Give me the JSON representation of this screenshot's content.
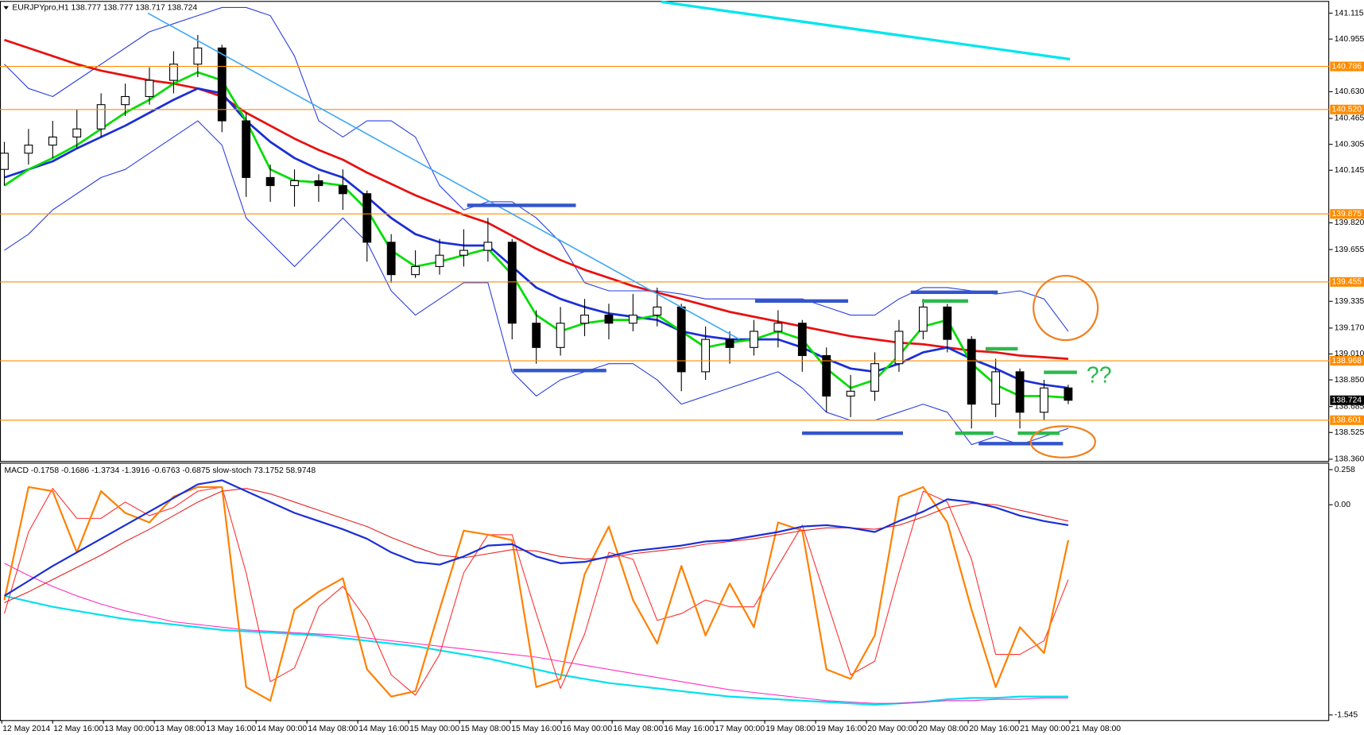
{
  "chart_data": [
    {
      "type": "candlestick",
      "title": "EURJPYpro,H1  138.777 138.777 138.717 138.724",
      "ylim": [
        138.349,
        141.185
      ],
      "yticks": [
        141.115,
        140.955,
        {
          "value": 140.63,
          "label": "140.630"
        },
        140.465,
        140.305,
        140.145,
        {
          "value": 139.82,
          "label": "139.820"
        },
        139.655,
        139.335,
        {
          "value": 139.17,
          "label": "139.170"
        },
        {
          "value": 139.01,
          "label": "139.010"
        },
        {
          "value": 138.85,
          "label": "138.850"
        },
        138.685,
        138.525,
        {
          "value": 138.36,
          "label": "138.360"
        }
      ],
      "levels": [
        140.786,
        {
          "value": 140.52,
          "label": "140.520"
        },
        139.875,
        139.455,
        138.968,
        138.601
      ],
      "level_color": "#ff8c00",
      "last_price": 138.724,
      "annotation": "??",
      "open": [
        140.15,
        140.25,
        140.3,
        140.35,
        140.4,
        140.55,
        140.6,
        140.7,
        140.8,
        140.9,
        140.45,
        140.1,
        140.05,
        140.08,
        140.05,
        140.0,
        139.7,
        139.5,
        139.55,
        139.62,
        139.65,
        139.7,
        139.2,
        139.05,
        139.2,
        139.25,
        139.2,
        139.25,
        139.3,
        138.9,
        139.1,
        139.05,
        139.15,
        139.2,
        139.0,
        138.75,
        138.78,
        138.95,
        139.15,
        139.3,
        139.1,
        138.7,
        138.9,
        138.65,
        138.8
      ],
      "high": [
        140.32,
        140.4,
        140.45,
        140.52,
        140.62,
        140.68,
        140.78,
        140.88,
        140.98,
        140.92,
        140.5,
        140.18,
        140.15,
        140.12,
        140.15,
        140.02,
        139.75,
        139.65,
        139.72,
        139.78,
        139.85,
        139.72,
        139.28,
        139.3,
        139.35,
        139.32,
        139.38,
        139.42,
        139.32,
        139.18,
        139.15,
        139.22,
        139.28,
        139.22,
        139.05,
        138.88,
        139.02,
        139.22,
        139.35,
        139.32,
        139.12,
        138.98,
        138.92,
        138.85,
        138.82
      ],
      "low": [
        140.05,
        140.18,
        140.22,
        140.28,
        140.35,
        140.48,
        140.55,
        140.62,
        140.72,
        140.38,
        139.98,
        139.95,
        139.92,
        139.95,
        139.9,
        139.58,
        139.45,
        139.48,
        139.5,
        139.55,
        139.58,
        139.1,
        138.95,
        139.0,
        139.12,
        139.1,
        139.15,
        139.18,
        138.78,
        138.85,
        138.95,
        139.0,
        139.05,
        138.9,
        138.65,
        138.62,
        138.72,
        138.9,
        139.1,
        139.02,
        138.55,
        138.62,
        138.55,
        138.6,
        138.7
      ],
      "close": [
        140.25,
        140.3,
        140.35,
        140.4,
        140.55,
        140.6,
        140.7,
        140.8,
        140.9,
        140.45,
        140.1,
        140.05,
        140.08,
        140.05,
        140.0,
        139.7,
        139.5,
        139.55,
        139.62,
        139.65,
        139.7,
        139.2,
        139.05,
        139.2,
        139.25,
        139.2,
        139.25,
        139.3,
        138.9,
        139.1,
        139.05,
        139.15,
        139.2,
        139.0,
        138.75,
        138.78,
        138.95,
        139.15,
        139.3,
        139.1,
        138.7,
        138.9,
        138.65,
        138.8,
        138.724
      ],
      "series": [
        {
          "color": "#2b3fe0",
          "width": 1,
          "values": [
            140.8,
            140.65,
            140.6,
            140.7,
            140.8,
            140.9,
            141.0,
            141.05,
            141.1,
            141.15,
            141.15,
            141.1,
            140.85,
            140.45,
            140.35,
            140.45,
            140.45,
            140.35,
            140.05,
            139.9,
            139.95,
            139.95,
            139.85,
            139.7,
            139.45,
            139.4,
            139.4,
            139.4,
            139.38,
            139.35,
            139.35,
            139.35,
            139.35,
            139.35,
            139.3,
            139.25,
            139.25,
            139.35,
            139.42,
            139.42,
            139.4,
            139.38,
            139.4,
            139.35,
            139.15
          ]
        },
        {
          "color": "#2b3fe0",
          "width": 1,
          "values": [
            139.65,
            139.75,
            139.9,
            140.0,
            140.1,
            140.15,
            140.25,
            140.35,
            140.45,
            140.3,
            139.85,
            139.7,
            139.55,
            139.7,
            139.85,
            139.7,
            139.4,
            139.25,
            139.35,
            139.45,
            139.45,
            138.9,
            138.75,
            138.85,
            138.9,
            138.95,
            138.95,
            138.85,
            138.7,
            138.75,
            138.8,
            138.85,
            138.9,
            138.8,
            138.65,
            138.6,
            138.6,
            138.65,
            138.7,
            138.65,
            138.45,
            138.5,
            138.45,
            138.5,
            138.55
          ]
        },
        {
          "color": "#e81010",
          "width": 2.5,
          "values": [
            140.95,
            140.9,
            140.85,
            140.8,
            140.76,
            140.73,
            140.7,
            140.68,
            140.65,
            140.6,
            140.5,
            140.42,
            140.34,
            140.27,
            140.21,
            140.13,
            140.06,
            139.99,
            139.93,
            139.87,
            139.82,
            139.74,
            139.66,
            139.59,
            139.53,
            139.48,
            139.43,
            139.39,
            139.35,
            139.31,
            139.27,
            139.24,
            139.21,
            139.18,
            139.15,
            139.12,
            139.1,
            139.08,
            139.07,
            139.05,
            139.03,
            139.02,
            139.0,
            138.99,
            138.98
          ]
        },
        {
          "color": "#1a2ed6",
          "width": 2.5,
          "values": [
            140.1,
            140.15,
            140.2,
            140.28,
            140.35,
            140.42,
            140.5,
            140.58,
            140.65,
            140.62,
            140.45,
            140.32,
            140.22,
            140.15,
            140.1,
            139.98,
            139.85,
            139.75,
            139.7,
            139.68,
            139.68,
            139.55,
            139.42,
            139.35,
            139.3,
            139.26,
            139.24,
            139.22,
            139.15,
            139.12,
            139.1,
            139.1,
            139.1,
            139.05,
            138.98,
            138.92,
            138.9,
            138.95,
            139.02,
            139.05,
            138.98,
            138.92,
            138.85,
            138.82,
            138.8
          ]
        },
        {
          "color": "#00dd00",
          "width": 2.5,
          "values": [
            140.05,
            140.15,
            140.22,
            140.3,
            140.4,
            140.5,
            140.58,
            140.68,
            140.75,
            140.7,
            140.45,
            140.15,
            140.08,
            140.07,
            140.05,
            139.9,
            139.65,
            139.55,
            139.58,
            139.62,
            139.66,
            139.5,
            139.25,
            139.15,
            139.2,
            139.22,
            139.22,
            139.25,
            139.15,
            139.05,
            139.08,
            139.1,
            139.15,
            139.1,
            138.92,
            138.8,
            138.85,
            139.0,
            139.18,
            139.22,
            138.95,
            138.82,
            138.75,
            138.75,
            138.74
          ]
        }
      ]
    },
    {
      "type": "line",
      "title": "MACD -0.1758 -0.1686 -1.3734 -1.3916 -0.6763 -0.6875 slow-stoch 73.1752 58.9748",
      "ylim": [
        -1.583,
        0.309
      ],
      "yticks": [
        0.258,
        {
          "value": 0,
          "label": "0.00"
        },
        -1.545
      ],
      "x_labels": [
        "12 May 2014",
        "12 May 16:00",
        "13 May 00:00",
        "13 May 08:00",
        "13 May 16:00",
        "14 May 00:00",
        "14 May 08:00",
        "14 May 16:00",
        "15 May 00:00",
        "15 May 08:00",
        "15 May 16:00",
        "16 May 00:00",
        "16 May 08:00",
        "16 May 16:00",
        "17 May 00:00",
        "19 May 08:00",
        "19 May 16:00",
        "20 May 00:00",
        "20 May 08:00",
        "20 May 16:00",
        "21 May 00:00",
        "21 May 08:00"
      ],
      "series": [
        {
          "color": "#00e0f0",
          "width": 2,
          "values": [
            -0.67,
            -0.71,
            -0.75,
            -0.78,
            -0.81,
            -0.84,
            -0.86,
            -0.88,
            -0.9,
            -0.92,
            -0.93,
            -0.94,
            -0.95,
            -0.96,
            -0.98,
            -1.0,
            -1.02,
            -1.04,
            -1.07,
            -1.1,
            -1.13,
            -1.17,
            -1.21,
            -1.25,
            -1.28,
            -1.31,
            -1.33,
            -1.35,
            -1.37,
            -1.39,
            -1.41,
            -1.42,
            -1.43,
            -1.44,
            -1.45,
            -1.46,
            -1.47,
            -1.46,
            -1.45,
            -1.43,
            -1.42,
            -1.42,
            -1.41,
            -1.41,
            -1.41
          ]
        },
        {
          "color": "#ff30c0",
          "width": 1,
          "values": [
            -0.43,
            -0.52,
            -0.6,
            -0.67,
            -0.73,
            -0.78,
            -0.82,
            -0.86,
            -0.88,
            -0.9,
            -0.92,
            -0.93,
            -0.94,
            -0.95,
            -0.96,
            -0.98,
            -1.0,
            -1.02,
            -1.04,
            -1.06,
            -1.08,
            -1.1,
            -1.12,
            -1.15,
            -1.18,
            -1.21,
            -1.24,
            -1.27,
            -1.3,
            -1.33,
            -1.36,
            -1.38,
            -1.4,
            -1.42,
            -1.44,
            -1.45,
            -1.46,
            -1.46,
            -1.45,
            -1.44,
            -1.44,
            -1.43,
            -1.43,
            -1.42,
            -1.42
          ]
        },
        {
          "color": "#ff3030",
          "width": 1,
          "values": [
            -0.8,
            -0.2,
            0.12,
            -0.1,
            -0.1,
            0.02,
            -0.08,
            -0.02,
            0.1,
            0.13,
            -0.5,
            -1.3,
            -1.2,
            -0.75,
            -0.6,
            -0.85,
            -1.25,
            -1.4,
            -1.1,
            -0.5,
            -0.22,
            -0.22,
            -0.8,
            -1.35,
            -0.95,
            -0.35,
            -0.4,
            -0.85,
            -0.8,
            -0.7,
            -0.75,
            -0.75,
            -0.45,
            -0.15,
            -0.7,
            -1.25,
            -1.15,
            -0.5,
            0.1,
            0.02,
            -0.4,
            -1.1,
            -1.1,
            -1.0,
            -0.55
          ]
        },
        {
          "color": "#ff8000",
          "width": 2,
          "values": [
            -0.7,
            0.13,
            0.1,
            -0.35,
            0.1,
            -0.06,
            -0.13,
            0.06,
            0.13,
            0.13,
            -1.34,
            -1.44,
            -0.77,
            -0.64,
            -0.54,
            -1.21,
            -1.41,
            -1.37,
            -0.77,
            -0.19,
            -0.22,
            -0.26,
            -1.34,
            -1.28,
            -0.51,
            -0.16,
            -0.7,
            -1.02,
            -0.45,
            -0.96,
            -0.58,
            -0.9,
            -0.13,
            -0.19,
            -1.21,
            -1.28,
            -0.96,
            0.06,
            0.13,
            -0.13,
            -0.77,
            -1.34,
            -0.9,
            -1.09,
            -0.26
          ]
        },
        {
          "color": "#e82020",
          "width": 1,
          "values": [
            -0.72,
            -0.64,
            -0.55,
            -0.46,
            -0.37,
            -0.27,
            -0.18,
            -0.08,
            0.02,
            0.1,
            0.12,
            0.08,
            0.02,
            -0.04,
            -0.1,
            -0.16,
            -0.24,
            -0.31,
            -0.37,
            -0.39,
            -0.36,
            -0.33,
            -0.34,
            -0.38,
            -0.4,
            -0.39,
            -0.36,
            -0.34,
            -0.32,
            -0.29,
            -0.27,
            -0.25,
            -0.22,
            -0.19,
            -0.17,
            -0.17,
            -0.18,
            -0.15,
            -0.09,
            -0.02,
            0.01,
            0.0,
            -0.04,
            -0.08,
            -0.12
          ]
        },
        {
          "color": "#1a2ed6",
          "width": 2,
          "values": [
            -0.67,
            -0.56,
            -0.45,
            -0.35,
            -0.25,
            -0.15,
            -0.05,
            0.05,
            0.15,
            0.18,
            0.1,
            0.02,
            -0.06,
            -0.12,
            -0.18,
            -0.25,
            -0.35,
            -0.42,
            -0.44,
            -0.38,
            -0.3,
            -0.29,
            -0.38,
            -0.43,
            -0.42,
            -0.38,
            -0.34,
            -0.32,
            -0.3,
            -0.27,
            -0.26,
            -0.23,
            -0.2,
            -0.16,
            -0.15,
            -0.17,
            -0.2,
            -0.12,
            -0.05,
            0.04,
            0.02,
            -0.02,
            -0.08,
            -0.12,
            -0.15
          ]
        }
      ]
    }
  ]
}
